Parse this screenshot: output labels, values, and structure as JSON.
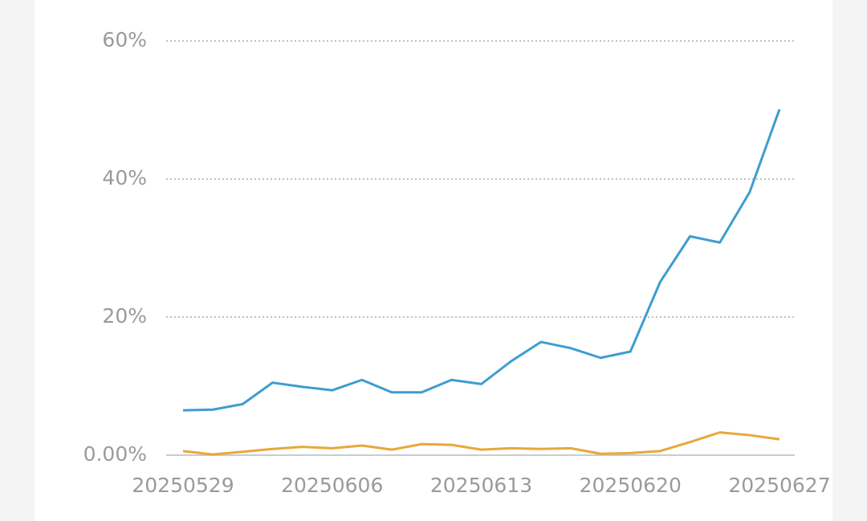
{
  "chart_data": {
    "type": "line",
    "categories": [
      "20250529",
      null,
      null,
      null,
      null,
      "20250606",
      null,
      null,
      null,
      null,
      "20250613",
      null,
      null,
      null,
      null,
      "20250620",
      null,
      null,
      null,
      null,
      "20250627"
    ],
    "series": [
      {
        "color": "#3d9dd0",
        "values": [
          6.5,
          6.6,
          7.4,
          10.5,
          9.9,
          9.4,
          10.9,
          9.1,
          9.1,
          10.9,
          10.3,
          13.6,
          16.4,
          15.5,
          14.1,
          15.0,
          25.1,
          31.7,
          30.8,
          38.1,
          50.1
        ]
      },
      {
        "color": "#e8a838",
        "values": [
          0.6,
          0.1,
          0.5,
          0.9,
          1.2,
          1.0,
          1.4,
          0.8,
          1.6,
          1.5,
          0.8,
          1.0,
          0.9,
          1.0,
          0.2,
          0.3,
          0.6,
          1.9,
          3.3,
          2.9,
          2.3
        ]
      }
    ],
    "ylim": [
      0,
      60
    ],
    "yticks": [
      {
        "value": 0,
        "label": "0.00%"
      },
      {
        "value": 20,
        "label": "20%"
      },
      {
        "value": 40,
        "label": "40%"
      },
      {
        "value": 60,
        "label": "60%"
      }
    ],
    "grid": true
  }
}
